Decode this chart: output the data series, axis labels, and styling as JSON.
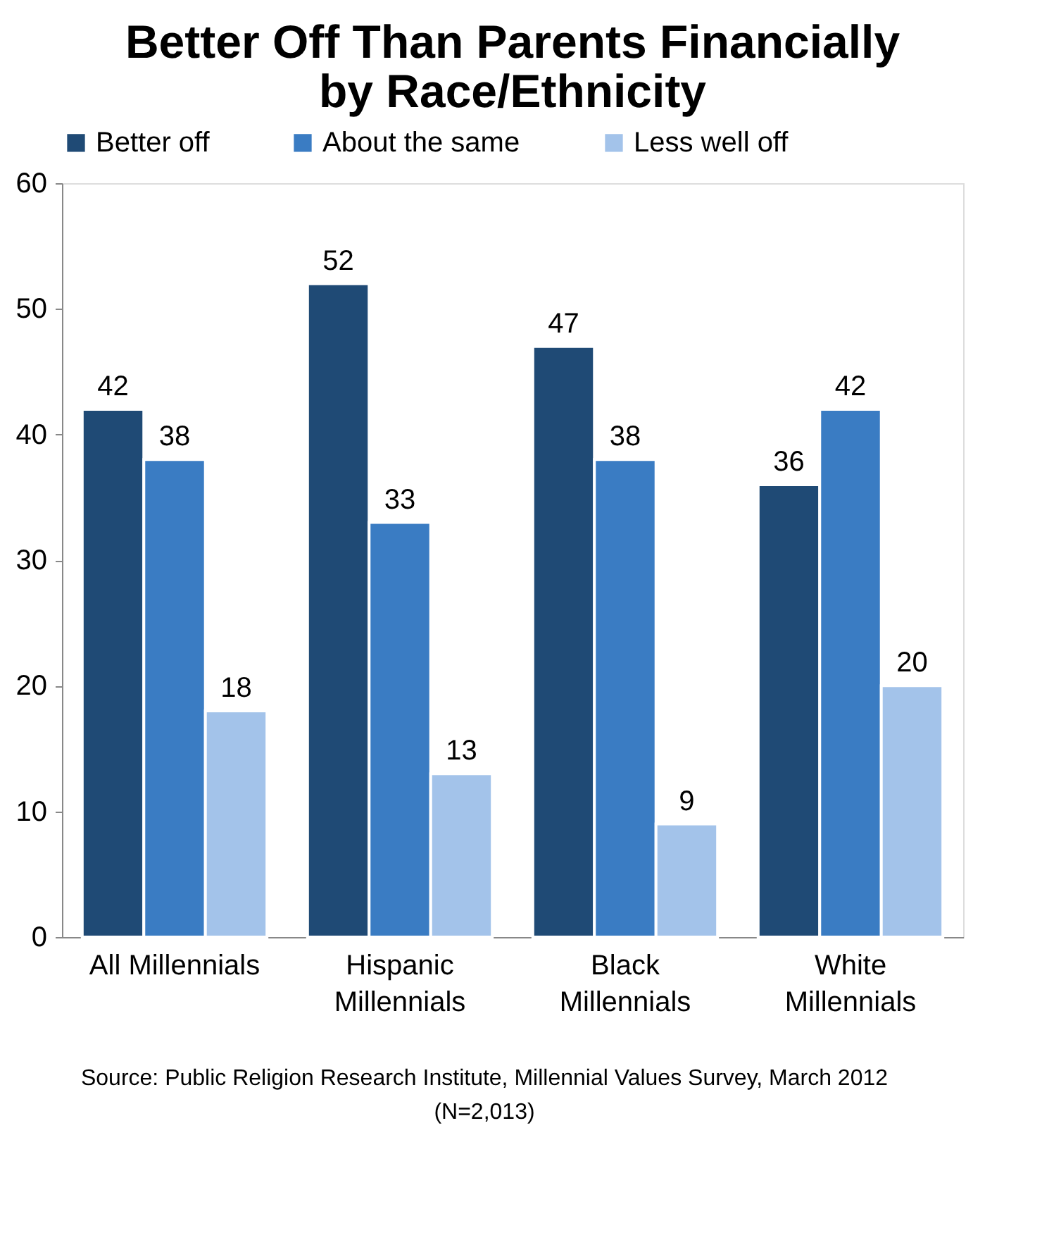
{
  "chart_data": {
    "type": "bar",
    "title": "Better Off Than Parents Financially by Race/Ethnicity",
    "categories": [
      "All Millennials",
      "Hispanic Millennials",
      "Black Millennials",
      "White Millennials"
    ],
    "series": [
      {
        "name": "Better off",
        "color": "#1f4a75",
        "values": [
          42,
          52,
          47,
          36
        ]
      },
      {
        "name": "About the same",
        "color": "#3a7cc3",
        "values": [
          38,
          33,
          38,
          42
        ]
      },
      {
        "name": "Less well off",
        "color": "#a3c3ea",
        "values": [
          18,
          13,
          9,
          20
        ]
      }
    ],
    "ylim": [
      0,
      60
    ],
    "yticks": [
      0,
      10,
      20,
      30,
      40,
      50,
      60
    ],
    "data_labels": true,
    "grid": false,
    "legend": "top",
    "annotations": [
      "Source: Public Religion Research Institute, Millennial Values Survey, March 2012",
      "(N=2,013)"
    ]
  }
}
